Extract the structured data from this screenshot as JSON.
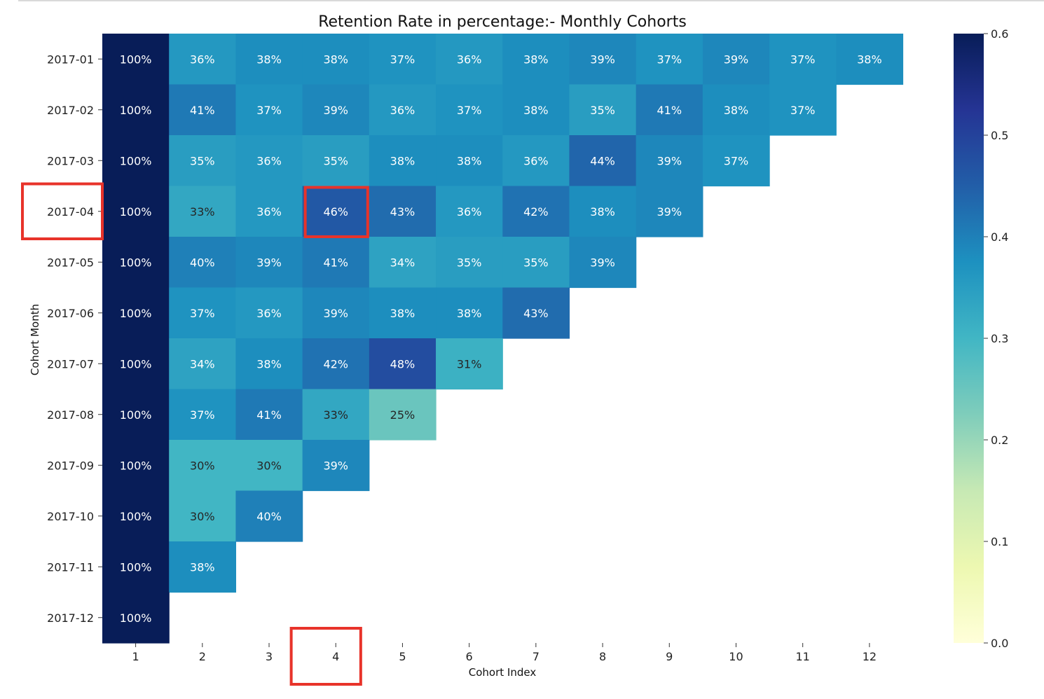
{
  "chart_data": {
    "type": "heatmap",
    "title": "Retention Rate in percentage:- Monthly Cohorts",
    "xlabel": "Cohort Index",
    "ylabel": "Cohort Month",
    "x_categories": [
      "1",
      "2",
      "3",
      "4",
      "5",
      "6",
      "7",
      "8",
      "9",
      "10",
      "11",
      "12"
    ],
    "y_categories": [
      "2017-01",
      "2017-02",
      "2017-03",
      "2017-04",
      "2017-05",
      "2017-06",
      "2017-07",
      "2017-08",
      "2017-09",
      "2017-10",
      "2017-11",
      "2017-12"
    ],
    "values": [
      [
        1.0,
        0.36,
        0.38,
        0.38,
        0.37,
        0.36,
        0.38,
        0.39,
        0.37,
        0.39,
        0.37,
        0.38
      ],
      [
        1.0,
        0.41,
        0.37,
        0.39,
        0.36,
        0.37,
        0.38,
        0.35,
        0.41,
        0.38,
        0.37,
        null
      ],
      [
        1.0,
        0.35,
        0.36,
        0.35,
        0.38,
        0.38,
        0.36,
        0.44,
        0.39,
        0.37,
        null,
        null
      ],
      [
        1.0,
        0.33,
        0.36,
        0.46,
        0.43,
        0.36,
        0.42,
        0.38,
        0.39,
        null,
        null,
        null
      ],
      [
        1.0,
        0.4,
        0.39,
        0.41,
        0.34,
        0.35,
        0.35,
        0.39,
        null,
        null,
        null,
        null
      ],
      [
        1.0,
        0.37,
        0.36,
        0.39,
        0.38,
        0.38,
        0.43,
        null,
        null,
        null,
        null,
        null
      ],
      [
        1.0,
        0.34,
        0.38,
        0.42,
        0.48,
        0.31,
        null,
        null,
        null,
        null,
        null,
        null
      ],
      [
        1.0,
        0.37,
        0.41,
        0.33,
        0.25,
        null,
        null,
        null,
        null,
        null,
        null,
        null
      ],
      [
        1.0,
        0.3,
        0.3,
        0.39,
        null,
        null,
        null,
        null,
        null,
        null,
        null,
        null
      ],
      [
        1.0,
        0.3,
        0.4,
        null,
        null,
        null,
        null,
        null,
        null,
        null,
        null,
        null
      ],
      [
        1.0,
        0.38,
        null,
        null,
        null,
        null,
        null,
        null,
        null,
        null,
        null,
        null
      ],
      [
        1.0,
        null,
        null,
        null,
        null,
        null,
        null,
        null,
        null,
        null,
        null,
        null
      ]
    ],
    "labels": [
      [
        "100%",
        "36%",
        "38%",
        "38%",
        "37%",
        "36%",
        "38%",
        "39%",
        "37%",
        "39%",
        "37%",
        "38%"
      ],
      [
        "100%",
        "41%",
        "37%",
        "39%",
        "36%",
        "37%",
        "38%",
        "35%",
        "41%",
        "38%",
        "37%",
        ""
      ],
      [
        "100%",
        "35%",
        "36%",
        "35%",
        "38%",
        "38%",
        "36%",
        "44%",
        "39%",
        "37%",
        "",
        ""
      ],
      [
        "100%",
        "33%",
        "36%",
        "46%",
        "43%",
        "36%",
        "42%",
        "38%",
        "39%",
        "",
        "",
        ""
      ],
      [
        "100%",
        "40%",
        "39%",
        "41%",
        "34%",
        "35%",
        "35%",
        "39%",
        "",
        "",
        "",
        ""
      ],
      [
        "100%",
        "37%",
        "36%",
        "39%",
        "38%",
        "38%",
        "43%",
        "",
        "",
        "",
        "",
        ""
      ],
      [
        "100%",
        "34%",
        "38%",
        "42%",
        "48%",
        "31%",
        "",
        "",
        "",
        "",
        "",
        ""
      ],
      [
        "100%",
        "37%",
        "41%",
        "33%",
        "25%",
        "",
        "",
        "",
        "",
        "",
        "",
        ""
      ],
      [
        "100%",
        "30%",
        "30%",
        "39%",
        "",
        "",
        "",
        "",
        "",
        "",
        "",
        ""
      ],
      [
        "100%",
        "30%",
        "40%",
        "",
        "",
        "",
        "",
        "",
        "",
        "",
        "",
        ""
      ],
      [
        "100%",
        "38%",
        "",
        "",
        "",
        "",
        "",
        "",
        "",
        "",
        "",
        ""
      ],
      [
        "100%",
        "",
        "",
        "",
        "",
        "",
        "",
        "",
        "",
        "",
        "",
        ""
      ]
    ],
    "colormap": "YlGnBu",
    "vmin": 0.0,
    "vmax": 0.6,
    "colorbar_ticks": [
      "0.0",
      "0.1",
      "0.2",
      "0.3",
      "0.4",
      "0.5",
      "0.6"
    ],
    "highlights": {
      "color": "#e8332a",
      "y_tick": "2017-04",
      "x_tick": "4",
      "cell": [
        "2017-04",
        "4"
      ]
    }
  }
}
